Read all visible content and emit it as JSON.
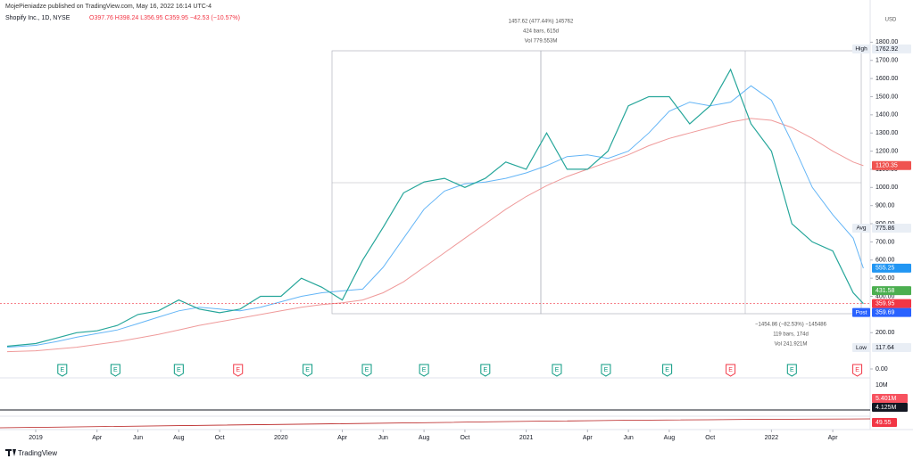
{
  "header": "MojePieniadze published on TradingView.com, May 16, 2022 16:14 UTC-4",
  "symbol": "Shopify Inc., 1D, NYSE",
  "ohlc": "O397.76 H398.24 L356.95 C359.95 −42.53 (−10.57%)",
  "footer": "TradingView",
  "chart_data": {
    "type": "line",
    "currency": "USD",
    "xlim": [
      -1.53,
      40.83
    ],
    "ylim": [
      0,
      1900
    ],
    "xticks": [
      {
        "value": 0,
        "label": "2019"
      },
      {
        "value": 3,
        "label": "Apr"
      },
      {
        "value": 5,
        "label": "Jun"
      },
      {
        "value": 7,
        "label": "Aug"
      },
      {
        "value": 9,
        "label": "Oct"
      },
      {
        "value": 12,
        "label": "2020"
      },
      {
        "value": 15,
        "label": "Apr"
      },
      {
        "value": 17,
        "label": "Jun"
      },
      {
        "value": 19,
        "label": "Aug"
      },
      {
        "value": 21,
        "label": "Oct"
      },
      {
        "value": 24,
        "label": "2021"
      },
      {
        "value": 27,
        "label": "Apr"
      },
      {
        "value": 29,
        "label": "Jun"
      },
      {
        "value": 31,
        "label": "Aug"
      },
      {
        "value": 33,
        "label": "Oct"
      },
      {
        "value": 36,
        "label": "2022"
      },
      {
        "value": 39,
        "label": "Apr"
      }
    ],
    "yticks": [
      {
        "value": 0,
        "label": "0.00"
      },
      {
        "value": 200,
        "label": "200.00"
      },
      {
        "value": 400,
        "label": "400.00"
      },
      {
        "value": 500,
        "label": "500.00"
      },
      {
        "value": 600,
        "label": "600.00"
      },
      {
        "value": 700,
        "label": "700.00"
      },
      {
        "value": 800,
        "label": "800.00"
      },
      {
        "value": 900,
        "label": "900.00"
      },
      {
        "value": 1000,
        "label": "1000.00"
      },
      {
        "value": 1100,
        "label": "1100.00"
      },
      {
        "value": 1200,
        "label": "1200.00"
      },
      {
        "value": 1300,
        "label": "1300.00"
      },
      {
        "value": 1400,
        "label": "1400.00"
      },
      {
        "value": 1500,
        "label": "1500.00"
      },
      {
        "value": 1600,
        "label": "1600.00"
      },
      {
        "value": 1700,
        "label": "1700.00"
      },
      {
        "value": 1800,
        "label": "1800.00"
      }
    ],
    "x": [
      -1.4,
      0,
      1,
      2,
      3,
      4,
      5,
      6,
      7,
      8,
      9,
      10,
      11,
      12,
      13,
      14,
      15,
      16,
      17,
      18,
      19,
      20,
      21,
      22,
      23,
      24,
      25,
      26,
      27,
      28,
      29,
      30,
      31,
      32,
      33,
      34,
      35,
      36,
      37,
      38,
      39,
      40,
      40.5
    ],
    "series": [
      {
        "color": "#26a69a",
        "width": 1.2,
        "values": [
          125,
          140,
          170,
          200,
          210,
          240,
          300,
          320,
          380,
          330,
          310,
          330,
          400,
          400,
          500,
          450,
          380,
          600,
          780,
          970,
          1030,
          1050,
          1000,
          1050,
          1140,
          1100,
          1300,
          1100,
          1100,
          1200,
          1450,
          1500,
          1500,
          1350,
          1450,
          1650,
          1350,
          1200,
          800,
          700,
          650,
          420,
          360
        ]
      },
      {
        "color": "#64b5f6",
        "width": 1,
        "values": [
          120,
          130,
          150,
          175,
          195,
          215,
          250,
          285,
          320,
          340,
          330,
          320,
          340,
          370,
          400,
          420,
          430,
          440,
          560,
          720,
          880,
          980,
          1020,
          1030,
          1050,
          1080,
          1120,
          1170,
          1180,
          1160,
          1200,
          1300,
          1420,
          1470,
          1450,
          1470,
          1560,
          1480,
          1250,
          1000,
          850,
          720,
          555
        ]
      },
      {
        "color": "#ef9a9a",
        "width": 1,
        "values": [
          95,
          100,
          110,
          120,
          135,
          150,
          170,
          190,
          215,
          240,
          260,
          280,
          300,
          320,
          340,
          355,
          365,
          380,
          420,
          480,
          560,
          640,
          720,
          800,
          880,
          950,
          1010,
          1060,
          1100,
          1140,
          1180,
          1230,
          1270,
          1300,
          1330,
          1360,
          1380,
          1370,
          1330,
          1270,
          1200,
          1140,
          1120
        ]
      }
    ],
    "price_labels": [
      {
        "tag": "High",
        "value": 1762.92,
        "label": "1762.92",
        "bg": "#e9eef5",
        "fg": "#131722"
      },
      {
        "value": 1120.35,
        "label": "1120.35",
        "bg": "#ef5350",
        "fg": "#ffffff"
      },
      {
        "tag": "Avg",
        "value": 775.86,
        "label": "775.86",
        "bg": "#e9eef5",
        "fg": "#131722"
      },
      {
        "value": 555.25,
        "label": "555.25",
        "bg": "#2196f3",
        "fg": "#ffffff"
      },
      {
        "value": 431.58,
        "label": "431.58",
        "bg": "#4caf50",
        "fg": "#ffffff"
      },
      {
        "value": 359.95,
        "label": "359.95",
        "bg": "#f23645",
        "fg": "#ffffff"
      },
      {
        "tag": "Post",
        "value": 359.69,
        "label": "359.69",
        "bg": "#2962ff",
        "fg": "#ffffff"
      },
      {
        "tag": "Low",
        "value": 117.64,
        "label": "117.64",
        "bg": "#e9eef5",
        "fg": "#131722"
      }
    ],
    "measure_up": [
      "1457.62 (477.44%) 145762",
      "424 bars, 615d",
      "Vol 779.553M"
    ],
    "measure_down": [
      "−1454.86 (−82.53%) −145486",
      "119 bars, 174d",
      "Vol 241.921M"
    ],
    "earnings": [
      {
        "x": 1.3,
        "label": "E",
        "color": "#089981"
      },
      {
        "x": 3.9,
        "label": "E",
        "color": "#089981"
      },
      {
        "x": 7.0,
        "label": "E",
        "color": "#089981"
      },
      {
        "x": 9.9,
        "label": "E",
        "color": "#f23645"
      },
      {
        "x": 13.3,
        "label": "E",
        "color": "#089981"
      },
      {
        "x": 16.2,
        "label": "E",
        "color": "#089981"
      },
      {
        "x": 19.0,
        "label": "E",
        "color": "#089981"
      },
      {
        "x": 22.0,
        "label": "E",
        "color": "#089981"
      },
      {
        "x": 25.5,
        "label": "E",
        "color": "#089981"
      },
      {
        "x": 27.9,
        "label": "E",
        "color": "#089981"
      },
      {
        "x": 30.9,
        "label": "E",
        "color": "#089981"
      },
      {
        "x": 34.0,
        "label": "E",
        "color": "#f23645"
      },
      {
        "x": 37.0,
        "label": "E",
        "color": "#089981"
      },
      {
        "x": 40.2,
        "label": "E",
        "color": "#f23645"
      }
    ],
    "volume_scale": "10M",
    "volume_badges": [
      {
        "label": "5.401M",
        "bg": "#f7525f"
      },
      {
        "label": "4.125M",
        "bg": "#131722"
      }
    ],
    "indicator_badge": {
      "label": "49.55",
      "bg": "#f23645"
    }
  }
}
